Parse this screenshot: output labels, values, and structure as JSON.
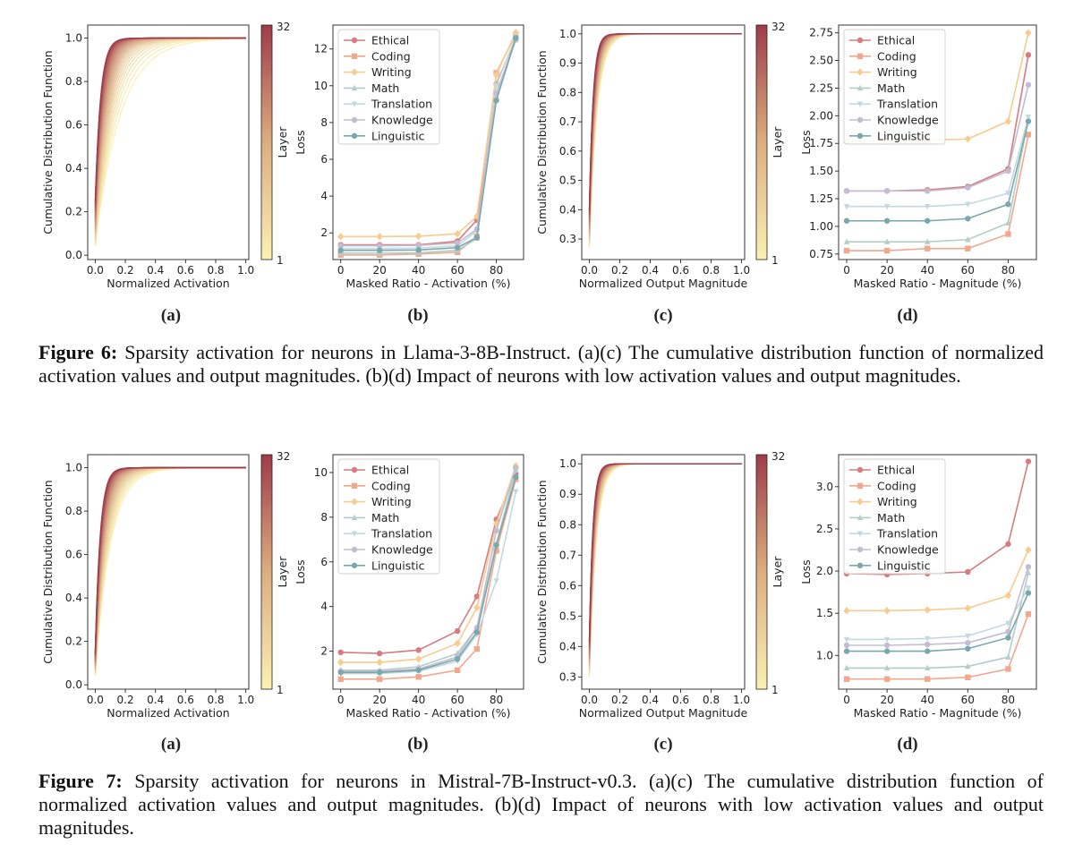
{
  "figures": [
    {
      "label": "Figure 6:",
      "caption": "Sparsity activation for neurons in Llama-3-8B-Instruct. (a)(c) The cumulative distribution function of normalized activation values and output magnitudes. (b)(d) Impact of neurons with low activation values and output magnitudes.",
      "panel_labels": [
        "(a)",
        "(b)",
        "(c)",
        "(d)"
      ]
    },
    {
      "label": "Figure 7:",
      "caption": "Sparsity activation for neurons in Mistral-7B-Instruct-v0.3. (a)(c) The cumulative distribution function of normalized activation values and output magnitudes. (b)(d) Impact of neurons with low activation values and output magnitudes.",
      "panel_labels": [
        "(a)",
        "(b)",
        "(c)",
        "(d)"
      ]
    }
  ],
  "colors": {
    "Ethical": "#d77b80",
    "Coding": "#f0a88e",
    "Writing": "#f6cc8f",
    "Math": "#b3cdc9",
    "Translation": "#c4d9df",
    "Knowledge": "#c2bdd2",
    "Linguistic": "#7aa8ad",
    "cmap_low": "#fbf0b2",
    "cmap_high": "#a03a49"
  },
  "chart_data": [
    {
      "type": "line",
      "figure": 6,
      "panel": "a",
      "xlabel": "Normalized Activation",
      "ylabel": "Cumulative Distribution Function",
      "xlim": [
        -0.05,
        1.02
      ],
      "ylim": [
        -0.02,
        1.06
      ],
      "xticks": [
        "0.0",
        "0.2",
        "0.4",
        "0.6",
        "0.8",
        "1.0"
      ],
      "yticks": [
        "0.0",
        "0.2",
        "0.4",
        "0.6",
        "0.8",
        "1.0"
      ],
      "series_note": "32 CDF curves, one per layer, colored by layer",
      "colorbar": {
        "label": "Layer",
        "min": "1",
        "max": "32"
      },
      "layers": 32,
      "ymin_start": 0.04,
      "ymax_start": 0.25,
      "k_low": 6,
      "k_high": 28
    },
    {
      "type": "line",
      "figure": 6,
      "panel": "b",
      "xlabel": "Masked Ratio - Activation (%)",
      "ylabel": "Loss",
      "xlim": [
        -4,
        94
      ],
      "ylim": [
        0.55,
        13.3
      ],
      "xticks": [
        "0",
        "20",
        "40",
        "60",
        "80"
      ],
      "yticks": [
        "2",
        "4",
        "6",
        "8",
        "10",
        "12"
      ],
      "x": [
        0,
        20,
        40,
        60,
        70,
        80,
        90
      ],
      "series": [
        {
          "name": "Ethical",
          "marker": "circle",
          "values": [
            1.35,
            1.35,
            1.35,
            1.55,
            2.7,
            10.1,
            12.6
          ]
        },
        {
          "name": "Coding",
          "marker": "square",
          "values": [
            0.8,
            0.8,
            0.85,
            0.95,
            1.8,
            10.7,
            12.8
          ]
        },
        {
          "name": "Writing",
          "marker": "diamond",
          "values": [
            1.8,
            1.8,
            1.82,
            1.95,
            2.9,
            10.6,
            12.9
          ]
        },
        {
          "name": "Math",
          "marker": "triangle-up",
          "values": [
            0.9,
            0.9,
            0.92,
            1.05,
            1.7,
            9.4,
            12.5
          ]
        },
        {
          "name": "Translation",
          "marker": "triangle-down",
          "values": [
            1.15,
            1.15,
            1.17,
            1.3,
            2.1,
            10.0,
            12.7
          ]
        },
        {
          "name": "Knowledge",
          "marker": "circle",
          "values": [
            1.3,
            1.3,
            1.32,
            1.45,
            2.2,
            9.6,
            12.5
          ]
        },
        {
          "name": "Linguistic",
          "marker": "circle",
          "values": [
            1.05,
            1.05,
            1.07,
            1.2,
            1.75,
            9.2,
            12.6
          ]
        }
      ],
      "legend": "top-left"
    },
    {
      "type": "line",
      "figure": 6,
      "panel": "c",
      "xlabel": "Normalized Output Magnitude",
      "ylabel": "Cumulative Distribution Function",
      "xlim": [
        -0.05,
        1.02
      ],
      "ylim": [
        0.23,
        1.03
      ],
      "xticks": [
        "0.0",
        "0.2",
        "0.4",
        "0.6",
        "0.8",
        "1.0"
      ],
      "yticks": [
        "0.3",
        "0.4",
        "0.5",
        "0.6",
        "0.7",
        "0.8",
        "0.9",
        "1.0"
      ],
      "series_note": "32 CDF curves, one per layer, colored by layer",
      "colorbar": {
        "label": "Layer",
        "min": "1",
        "max": "32"
      },
      "layers": 32,
      "ymin_start": 0.27,
      "ymax_start": 0.4,
      "k_low": 20,
      "k_high": 40
    },
    {
      "type": "line",
      "figure": 6,
      "panel": "d",
      "xlabel": "Masked Ratio - Magnitude (%)",
      "ylabel": "Loss",
      "xlim": [
        -4,
        94
      ],
      "ylim": [
        0.7,
        2.82
      ],
      "xticks": [
        "0",
        "20",
        "40",
        "60",
        "80"
      ],
      "yticks": [
        "0.75",
        "1.00",
        "1.25",
        "1.50",
        "1.75",
        "2.00",
        "2.25",
        "2.50",
        "2.75"
      ],
      "x": [
        0,
        20,
        40,
        60,
        80,
        90
      ],
      "series": [
        {
          "name": "Ethical",
          "marker": "circle",
          "values": [
            1.32,
            1.32,
            1.33,
            1.36,
            1.52,
            2.55
          ]
        },
        {
          "name": "Coding",
          "marker": "square",
          "values": [
            0.78,
            0.78,
            0.8,
            0.8,
            0.93,
            1.83
          ]
        },
        {
          "name": "Writing",
          "marker": "diamond",
          "values": [
            1.77,
            1.77,
            1.78,
            1.79,
            1.95,
            2.75
          ]
        },
        {
          "name": "Math",
          "marker": "triangle-up",
          "values": [
            0.86,
            0.86,
            0.86,
            0.88,
            1.03,
            1.97
          ]
        },
        {
          "name": "Translation",
          "marker": "triangle-down",
          "values": [
            1.18,
            1.18,
            1.18,
            1.2,
            1.3,
            1.99
          ]
        },
        {
          "name": "Knowledge",
          "marker": "circle",
          "values": [
            1.32,
            1.32,
            1.32,
            1.35,
            1.5,
            2.28
          ]
        },
        {
          "name": "Linguistic",
          "marker": "circle",
          "values": [
            1.05,
            1.05,
            1.05,
            1.07,
            1.2,
            1.95
          ]
        }
      ],
      "legend": "top-left"
    },
    {
      "type": "line",
      "figure": 7,
      "panel": "a",
      "xlabel": "Normalized Activation",
      "ylabel": "Cumulative Distribution Function",
      "xlim": [
        -0.05,
        1.02
      ],
      "ylim": [
        -0.02,
        1.06
      ],
      "xticks": [
        "0.0",
        "0.2",
        "0.4",
        "0.6",
        "0.8",
        "1.0"
      ],
      "yticks": [
        "0.0",
        "0.2",
        "0.4",
        "0.6",
        "0.8",
        "1.0"
      ],
      "series_note": "32 CDF curves, one per layer, colored by layer",
      "colorbar": {
        "label": "Layer",
        "min": "1",
        "max": "32"
      },
      "layers": 32,
      "ymin_start": 0.04,
      "ymax_start": 0.15,
      "k_low": 10,
      "k_high": 30
    },
    {
      "type": "line",
      "figure": 7,
      "panel": "b",
      "xlabel": "Masked Ratio - Activation (%)",
      "ylabel": "Loss",
      "xlim": [
        -4,
        94
      ],
      "ylim": [
        0.3,
        10.8
      ],
      "xticks": [
        "0",
        "20",
        "40",
        "60",
        "80"
      ],
      "yticks": [
        "2",
        "4",
        "6",
        "8",
        "10"
      ],
      "x": [
        0,
        20,
        40,
        60,
        70,
        80,
        90
      ],
      "series": [
        {
          "name": "Ethical",
          "marker": "circle",
          "values": [
            1.95,
            1.9,
            2.05,
            2.9,
            4.45,
            7.9,
            9.95
          ]
        },
        {
          "name": "Coding",
          "marker": "square",
          "values": [
            0.75,
            0.75,
            0.85,
            1.15,
            2.1,
            6.5,
            9.7
          ]
        },
        {
          "name": "Writing",
          "marker": "diamond",
          "values": [
            1.5,
            1.5,
            1.65,
            2.35,
            3.95,
            7.7,
            10.3
          ]
        },
        {
          "name": "Math",
          "marker": "triangle-up",
          "values": [
            1.15,
            1.15,
            1.3,
            1.9,
            3.05,
            6.8,
            10.1
          ]
        },
        {
          "name": "Translation",
          "marker": "triangle-down",
          "values": [
            1.0,
            1.0,
            1.1,
            1.55,
            2.75,
            5.15,
            9.15
          ]
        },
        {
          "name": "Knowledge",
          "marker": "circle",
          "values": [
            1.1,
            1.1,
            1.2,
            1.75,
            3.05,
            7.4,
            10.2
          ]
        },
        {
          "name": "Linguistic",
          "marker": "circle",
          "values": [
            1.05,
            1.05,
            1.15,
            1.65,
            2.85,
            6.75,
            9.8
          ]
        }
      ],
      "legend": "top-left"
    },
    {
      "type": "line",
      "figure": 7,
      "panel": "c",
      "xlabel": "Normalized Output Magnitude",
      "ylabel": "Cumulative Distribution Function",
      "xlim": [
        -0.05,
        1.02
      ],
      "ylim": [
        0.26,
        1.03
      ],
      "xticks": [
        "0.0",
        "0.2",
        "0.4",
        "0.6",
        "0.8",
        "1.0"
      ],
      "yticks": [
        "0.3",
        "0.4",
        "0.5",
        "0.6",
        "0.7",
        "0.8",
        "0.9",
        "1.0"
      ],
      "series_note": "32 CDF curves, one per layer, colored by layer",
      "colorbar": {
        "label": "Layer",
        "min": "1",
        "max": "32"
      },
      "layers": 32,
      "ymin_start": 0.3,
      "ymax_start": 0.42,
      "k_low": 22,
      "k_high": 42
    },
    {
      "type": "line",
      "figure": 7,
      "panel": "d",
      "xlabel": "Masked Ratio - Magnitude (%)",
      "ylabel": "Loss",
      "xlim": [
        -4,
        94
      ],
      "ylim": [
        0.6,
        3.38
      ],
      "xticks": [
        "0",
        "20",
        "40",
        "60",
        "80"
      ],
      "yticks": [
        "1.0",
        "1.5",
        "2.0",
        "2.5",
        "3.0"
      ],
      "x": [
        0,
        20,
        40,
        60,
        80,
        90
      ],
      "series": [
        {
          "name": "Ethical",
          "marker": "circle",
          "values": [
            1.97,
            1.96,
            1.97,
            1.99,
            2.32,
            3.3
          ]
        },
        {
          "name": "Coding",
          "marker": "square",
          "values": [
            0.72,
            0.72,
            0.72,
            0.74,
            0.84,
            1.49
          ]
        },
        {
          "name": "Writing",
          "marker": "diamond",
          "values": [
            1.53,
            1.53,
            1.54,
            1.56,
            1.71,
            2.25
          ]
        },
        {
          "name": "Math",
          "marker": "triangle-up",
          "values": [
            0.85,
            0.85,
            0.85,
            0.87,
            0.98,
            1.98
          ]
        },
        {
          "name": "Translation",
          "marker": "triangle-down",
          "values": [
            1.19,
            1.19,
            1.2,
            1.23,
            1.38,
            1.8
          ]
        },
        {
          "name": "Knowledge",
          "marker": "circle",
          "values": [
            1.12,
            1.12,
            1.13,
            1.15,
            1.28,
            2.05
          ]
        },
        {
          "name": "Linguistic",
          "marker": "circle",
          "values": [
            1.05,
            1.05,
            1.05,
            1.08,
            1.21,
            1.74
          ]
        }
      ],
      "legend": "top-left"
    }
  ]
}
